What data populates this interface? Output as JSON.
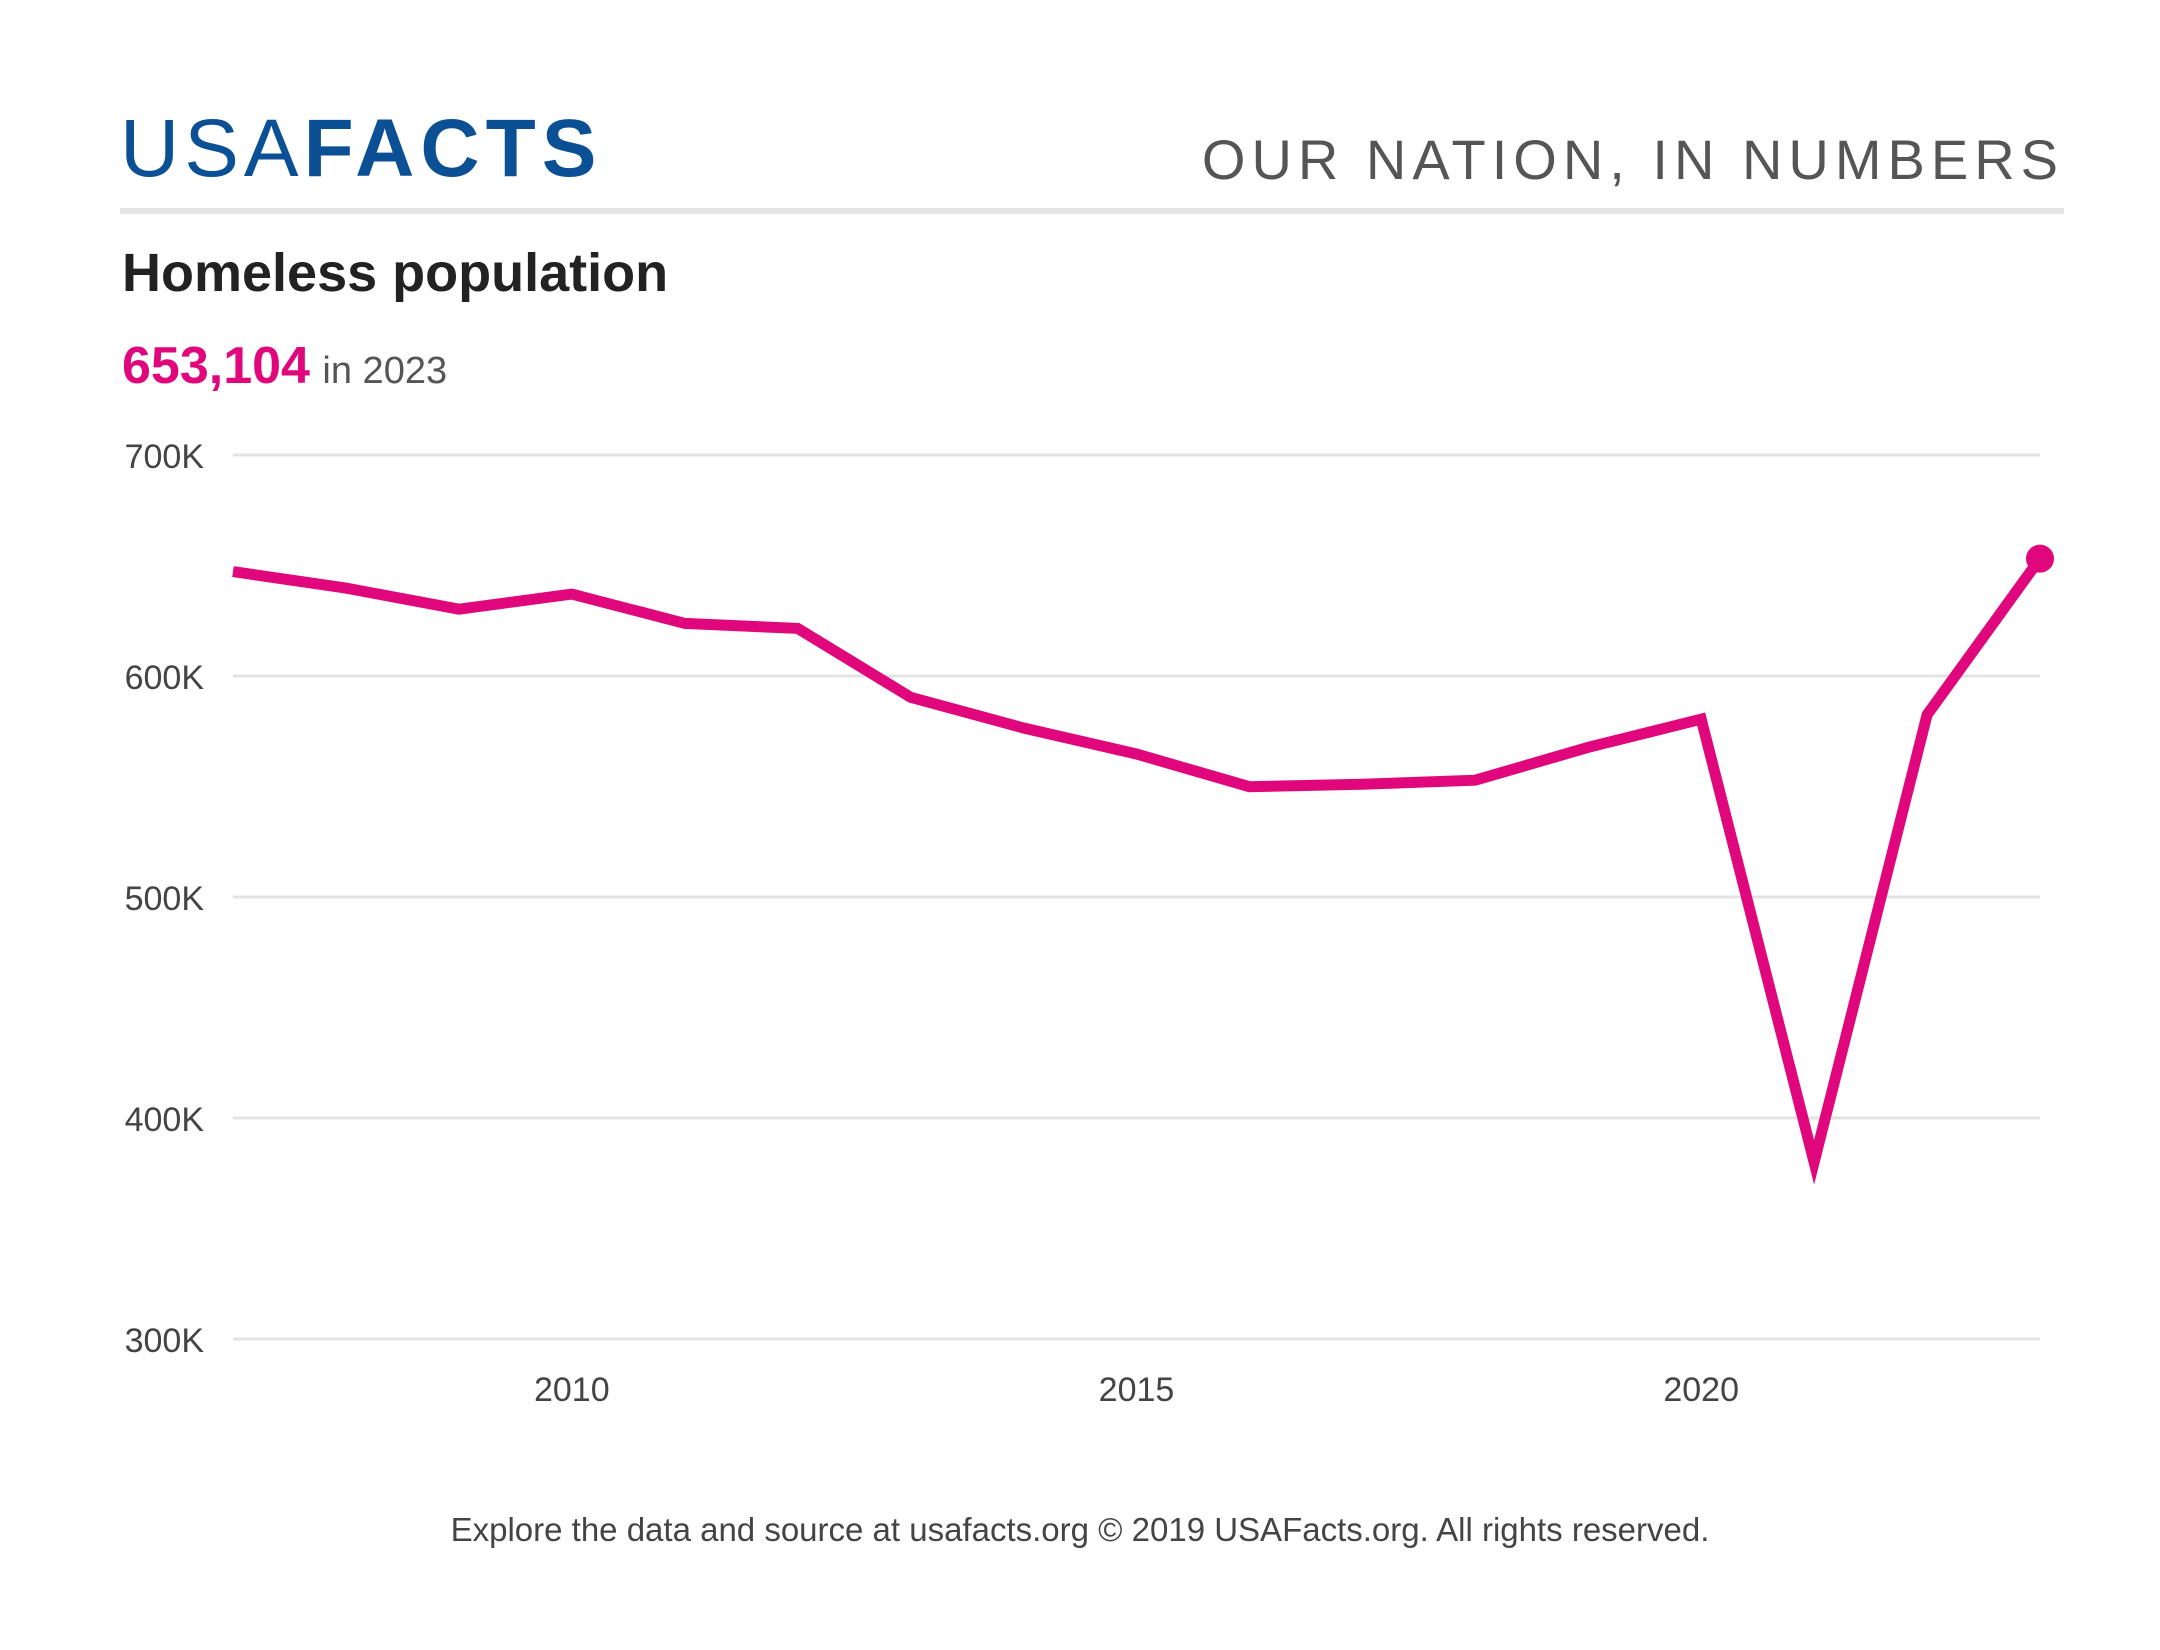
{
  "brand": {
    "logo_light": "USA",
    "logo_bold": "FACTS",
    "tagline": "OUR NATION, IN NUMBERS",
    "color": "#0b4f94"
  },
  "headline": {
    "value": "653,104",
    "suffix": "in 2023"
  },
  "footer": "Explore the data and source at usafacts.org © 2019 USAFacts.org. All rights reserved.",
  "chart_data": {
    "type": "line",
    "title": "Homeless population",
    "xlabel": "",
    "ylabel": "",
    "x": [
      2007,
      2008,
      2009,
      2010,
      2011,
      2012,
      2013,
      2014,
      2015,
      2016,
      2017,
      2018,
      2019,
      2020,
      2021,
      2022,
      2023
    ],
    "series": [
      {
        "name": "",
        "color": "#e0077d",
        "values": [
          647258,
          639784,
          630227,
          637077,
          623788,
          621553,
          590364,
          576450,
          564708,
          549928,
          550996,
          552830,
          567715,
          580466,
          380000,
          582462,
          653104
        ]
      }
    ],
    "xlim": [
      2007,
      2023
    ],
    "ylim": [
      300000,
      700000
    ],
    "xticks": [
      2010,
      2015,
      2020
    ],
    "xtick_labels": [
      "2010",
      "2015",
      "2020"
    ],
    "yticks": [
      300000,
      400000,
      500000,
      600000,
      700000
    ],
    "ytick_labels": [
      "300K",
      "400K",
      "500K",
      "600K",
      "700K"
    ],
    "grid": true,
    "legend": "none",
    "end_marker": true
  }
}
